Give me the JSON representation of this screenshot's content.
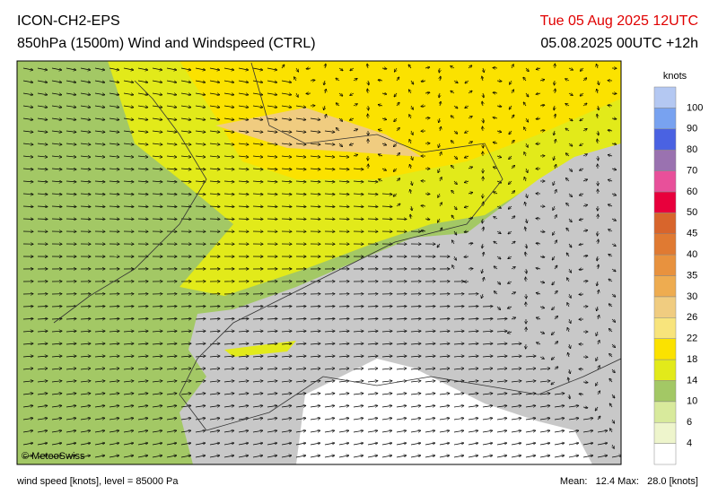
{
  "header": {
    "model": "ICON-CH2-EPS",
    "product": "850hPa (1500m) Wind and Windspeed (CTRL)",
    "valid_time": "Tue 05 Aug 2025 12UTC",
    "run": "05.08.2025 00UTC +12h"
  },
  "map": {
    "credit": "© MeteoSwiss"
  },
  "colorbar": {
    "unit": "knots",
    "levels": [
      4,
      6,
      10,
      14,
      18,
      22,
      26,
      30,
      35,
      40,
      45,
      50,
      60,
      70,
      80,
      90,
      100
    ],
    "colors": [
      "#ffffff",
      "#eef5cc",
      "#d8ea9c",
      "#a3c865",
      "#e2ea1a",
      "#fbe200",
      "#f8e47c",
      "#f0cc80",
      "#eeac50",
      "#e8923e",
      "#e07a32",
      "#d8652c",
      "#e8003c",
      "#e8509a",
      "#9a72b0",
      "#4a62e2",
      "#78a2f0",
      "#b4c8f2"
    ]
  },
  "footer": {
    "variable": "wind speed [knots], level = 85000 Pa",
    "stats": "Mean:   12.4 Max:   28.0 [knots]"
  }
}
